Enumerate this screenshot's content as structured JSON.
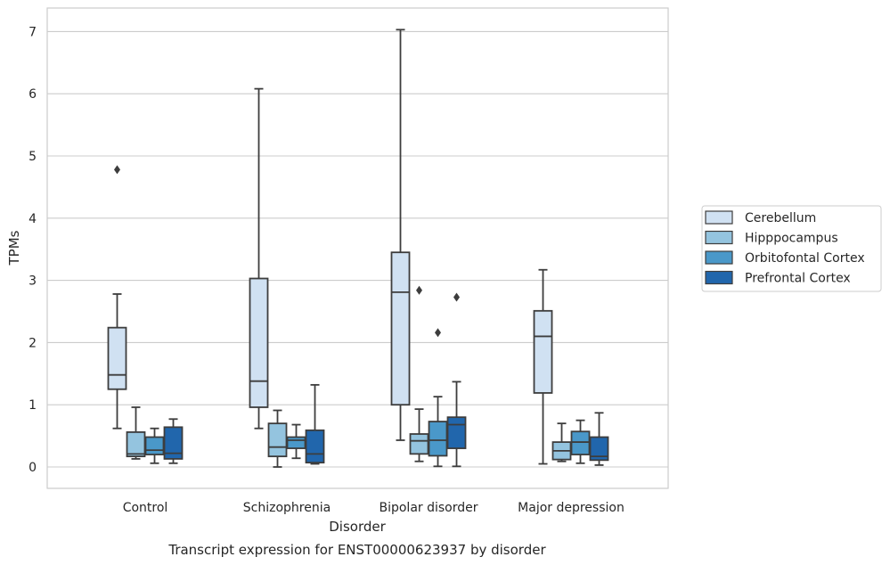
{
  "chart_data": {
    "type": "boxplot",
    "title": "Transcript expression for ENST00000623937 by disorder",
    "xlabel": "Disorder",
    "ylabel": "TPMs",
    "ylim": [
      -0.33,
      7.38
    ],
    "yticks": [
      0,
      1,
      2,
      3,
      4,
      5,
      6,
      7
    ],
    "grid": true,
    "legend_position": "right",
    "categories": [
      "Control",
      "Schizophrenia",
      "Bipolar disorder",
      "Major depression"
    ],
    "series": [
      {
        "name": "Cerebellum",
        "color": "#d0e1f2",
        "boxes": [
          {
            "whislo": 0.62,
            "q1": 1.25,
            "med": 1.48,
            "q3": 2.24,
            "whishi": 2.78,
            "fliers": [
              4.78
            ]
          },
          {
            "whislo": 0.62,
            "q1": 0.96,
            "med": 1.38,
            "q3": 3.03,
            "whishi": 6.08,
            "fliers": []
          },
          {
            "whislo": 0.43,
            "q1": 1.0,
            "med": 2.81,
            "q3": 3.45,
            "whishi": 7.03,
            "fliers": []
          },
          {
            "whislo": 0.05,
            "q1": 1.19,
            "med": 2.1,
            "q3": 2.51,
            "whishi": 3.17,
            "fliers": []
          }
        ]
      },
      {
        "name": "Hipppocampus",
        "color": "#94c4df",
        "boxes": [
          {
            "whislo": 0.13,
            "q1": 0.17,
            "med": 0.21,
            "q3": 0.56,
            "whishi": 0.96,
            "fliers": []
          },
          {
            "whislo": 0.0,
            "q1": 0.17,
            "med": 0.32,
            "q3": 0.7,
            "whishi": 0.91,
            "fliers": []
          },
          {
            "whislo": 0.09,
            "q1": 0.21,
            "med": 0.42,
            "q3": 0.53,
            "whishi": 0.93,
            "fliers": [
              2.84
            ]
          },
          {
            "whislo": 0.09,
            "q1": 0.12,
            "med": 0.26,
            "q3": 0.4,
            "whishi": 0.7,
            "fliers": []
          }
        ]
      },
      {
        "name": "Orbitofontal Cortex",
        "color": "#4a98c9",
        "boxes": [
          {
            "whislo": 0.06,
            "q1": 0.2,
            "med": 0.27,
            "q3": 0.48,
            "whishi": 0.62,
            "fliers": []
          },
          {
            "whislo": 0.14,
            "q1": 0.3,
            "med": 0.43,
            "q3": 0.48,
            "whishi": 0.68,
            "fliers": []
          },
          {
            "whislo": 0.01,
            "q1": 0.18,
            "med": 0.43,
            "q3": 0.73,
            "whishi": 1.13,
            "fliers": [
              2.16
            ]
          },
          {
            "whislo": 0.06,
            "q1": 0.2,
            "med": 0.4,
            "q3": 0.57,
            "whishi": 0.75,
            "fliers": []
          }
        ]
      },
      {
        "name": "Prefrontal Cortex",
        "color": "#2166ac",
        "boxes": [
          {
            "whislo": 0.06,
            "q1": 0.13,
            "med": 0.22,
            "q3": 0.64,
            "whishi": 0.77,
            "fliers": []
          },
          {
            "whislo": 0.05,
            "q1": 0.07,
            "med": 0.21,
            "q3": 0.59,
            "whishi": 1.32,
            "fliers": []
          },
          {
            "whislo": 0.01,
            "q1": 0.3,
            "med": 0.68,
            "q3": 0.8,
            "whishi": 1.37,
            "fliers": [
              2.73
            ]
          },
          {
            "whislo": 0.03,
            "q1": 0.11,
            "med": 0.17,
            "q3": 0.48,
            "whishi": 0.87,
            "fliers": []
          }
        ]
      }
    ]
  }
}
